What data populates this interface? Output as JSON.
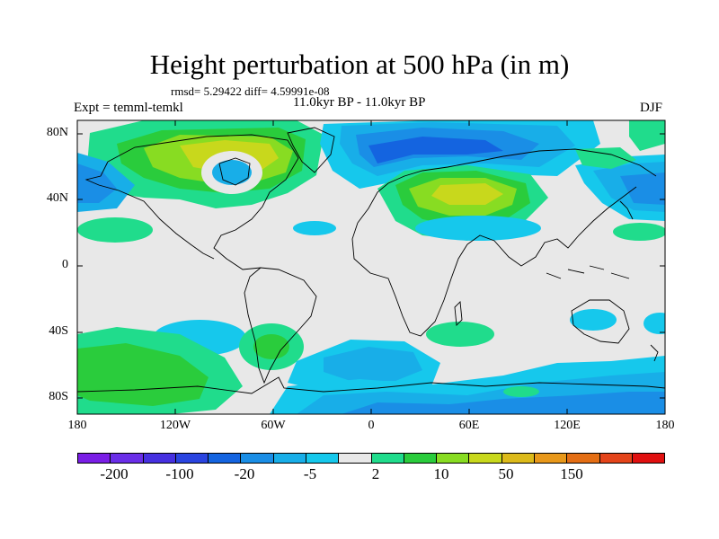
{
  "header": {
    "title": "Height perturbation at 500 hPa (in m)",
    "stats": "rmsd= 5.29422 diff= 4.59991e-08",
    "period": "11.0kyr BP - 11.0kyr BP",
    "experiment": "Expt = temml-temkl",
    "season": "DJF"
  },
  "map": {
    "projection": "cylindrical equidistant",
    "lon_range": [
      -180,
      180
    ],
    "lat_range": [
      -90,
      90
    ],
    "lat_ticks": [
      "80N",
      "40N",
      "0",
      "40S",
      "80S"
    ],
    "lon_ticks": [
      "180",
      "120W",
      "60W",
      "0",
      "60E",
      "120E",
      "180"
    ],
    "field": "500 hPa height perturbation",
    "units": "m"
  },
  "colorbar": {
    "colors": [
      "#7a1ee6",
      "#6a2ee8",
      "#4630e0",
      "#2a44e0",
      "#1464e0",
      "#1a8ee6",
      "#18aee8",
      "#16c8ec",
      "#e8e8e8",
      "#20dc8c",
      "#2acc3c",
      "#88dc22",
      "#c8d81c",
      "#dcba1a",
      "#e8981a",
      "#e46e14",
      "#e4441a",
      "#e01010"
    ],
    "labels": [
      "-200",
      "-100",
      "-20",
      "-5",
      "2",
      "10",
      "50",
      "150"
    ]
  }
}
